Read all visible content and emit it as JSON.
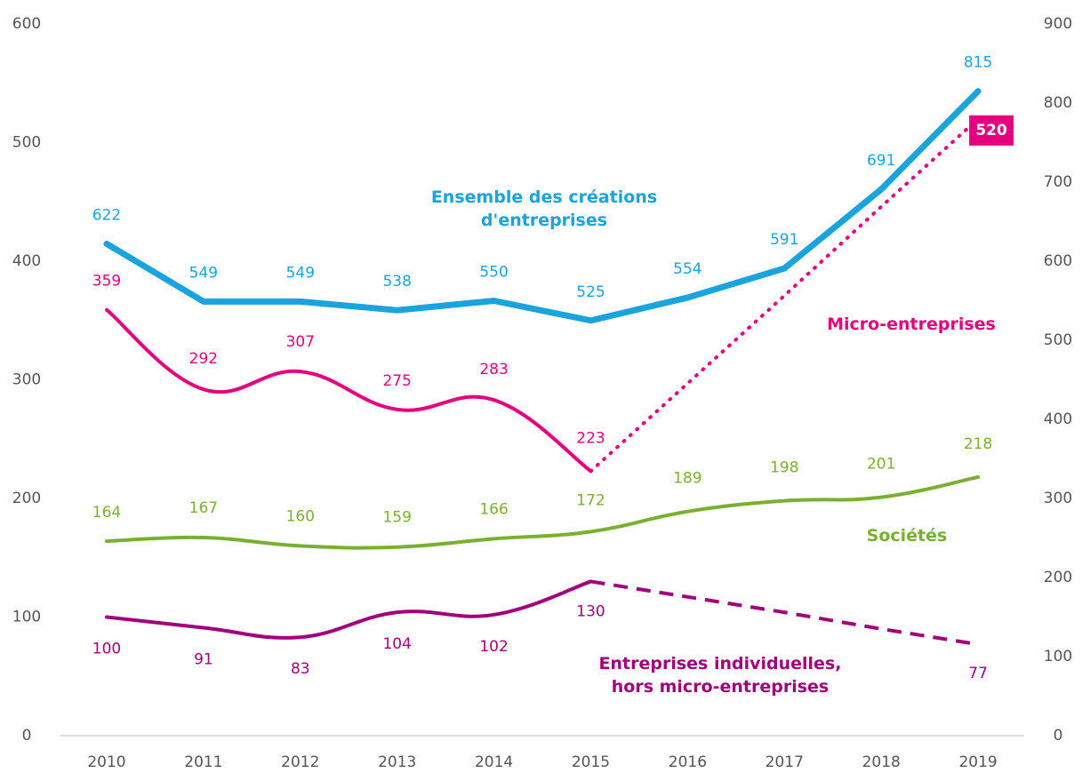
{
  "chart_data": {
    "type": "line",
    "categories": [
      "2010",
      "2011",
      "2012",
      "2013",
      "2014",
      "2015",
      "2016",
      "2017",
      "2018",
      "2019"
    ],
    "ylim": [
      0,
      600
    ],
    "yticks": [
      0,
      100,
      200,
      300,
      400,
      500,
      600
    ],
    "y2lim": [
      0,
      900
    ],
    "y2ticks": [
      0,
      100,
      200,
      300,
      400,
      500,
      600,
      700,
      800,
      900
    ],
    "series": [
      {
        "name": "Ensemble des créations\nd'entreprises",
        "color": "#1ba3dd",
        "axis": "y2",
        "smooth": false,
        "values": [
          622,
          549,
          549,
          538,
          550,
          525,
          554,
          591,
          691,
          815
        ]
      },
      {
        "name": "Micro-entreprises",
        "color": "#e5007d",
        "axis": "y",
        "smooth": true,
        "projection_start": 5,
        "projection_style": "dotted",
        "values": [
          359,
          292,
          307,
          275,
          283,
          223,
          297,
          371,
          446,
          520
        ]
      },
      {
        "name": "Sociétés",
        "color": "#7ab032",
        "axis": "y",
        "smooth": true,
        "values": [
          164,
          167,
          160,
          159,
          166,
          172,
          189,
          198,
          201,
          218
        ]
      },
      {
        "name": "Entreprises individuelles,\nhors micro-entreprises",
        "color": "#a0007a",
        "axis": "y",
        "smooth": true,
        "projection_start": 5,
        "projection_style": "dashed",
        "values": [
          100,
          91,
          83,
          104,
          102,
          130,
          117,
          104,
          90,
          77
        ]
      }
    ]
  }
}
